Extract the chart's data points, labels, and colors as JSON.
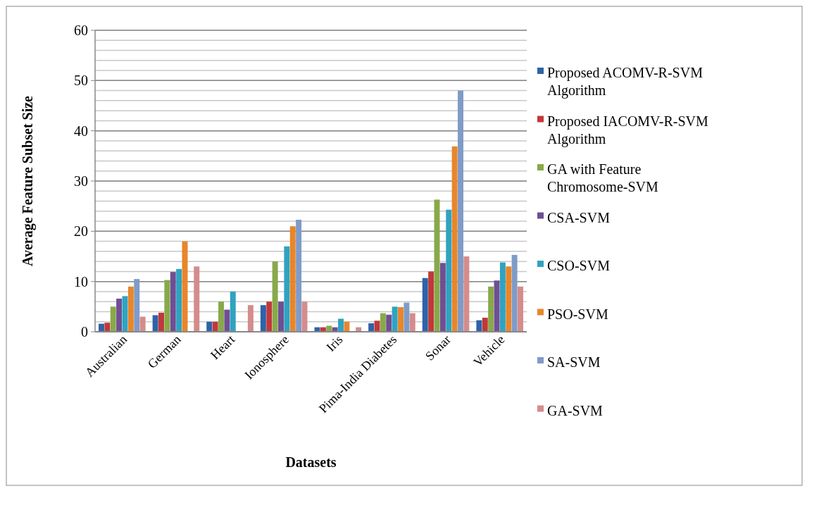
{
  "chart_data": {
    "type": "bar",
    "xlabel": "Datasets",
    "ylabel": "Average Feature Subset Size",
    "categories": [
      "Australian",
      "German",
      "Heart",
      "Ionosphere",
      "Iris",
      "Pima-India Diabetes",
      "Sonar",
      "Vehicle"
    ],
    "series": [
      {
        "name": "Proposed ACOMV-R-SVM Algorithm",
        "color": "#2f62a8",
        "values": [
          1.6,
          3.3,
          2,
          5.3,
          0.9,
          1.7,
          10.7,
          2.3
        ]
      },
      {
        "name": "Proposed IACOMV-R-SVM Algorithm",
        "color": "#c0383a",
        "values": [
          1.8,
          3.8,
          2,
          6,
          0.9,
          2.2,
          12,
          2.8
        ]
      },
      {
        "name": "GA with Feature Chromosome-SVM",
        "color": "#88a94a",
        "values": [
          5,
          10.3,
          6,
          14,
          1.2,
          3.7,
          26.3,
          9
        ]
      },
      {
        "name": "CSA-SVM",
        "color": "#6e4f93",
        "values": [
          6.6,
          11.9,
          4.4,
          6,
          0.9,
          3.4,
          13.7,
          10.2
        ]
      },
      {
        "name": "CSO-SVM",
        "color": "#2fa3c0",
        "values": [
          7.1,
          12.5,
          8,
          17,
          2.6,
          5,
          24.3,
          13.8
        ]
      },
      {
        "name": "PSO-SVM",
        "color": "#e8862a",
        "values": [
          9,
          18,
          null,
          21,
          2,
          4.9,
          36.9,
          13
        ]
      },
      {
        "name": "SA-SVM",
        "color": "#7f9bc7",
        "values": [
          10.5,
          null,
          null,
          22.3,
          null,
          5.8,
          48,
          15.3
        ]
      },
      {
        "name": "GA-SVM",
        "color": "#d48c8c",
        "values": [
          3,
          13,
          5.3,
          6,
          0.9,
          3.7,
          15,
          9
        ]
      }
    ],
    "ylim": [
      0,
      60
    ],
    "yticks": [
      0,
      10,
      20,
      30,
      40,
      50,
      60
    ],
    "grid": "y",
    "legend": "right"
  }
}
